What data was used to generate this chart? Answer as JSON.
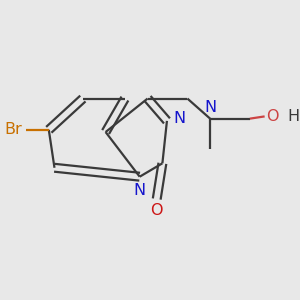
{
  "bg_color": "#e8e8e8",
  "bond_color": "#3a3a3a",
  "N_color": "#1515cc",
  "O_color": "#cc1515",
  "Br_color": "#c87000",
  "O_side_color": "#cc4444",
  "line_width": 1.6,
  "font_size": 11.5,
  "xlim": [
    0,
    3.2
  ],
  "ylim": [
    0.4,
    3.0
  ]
}
